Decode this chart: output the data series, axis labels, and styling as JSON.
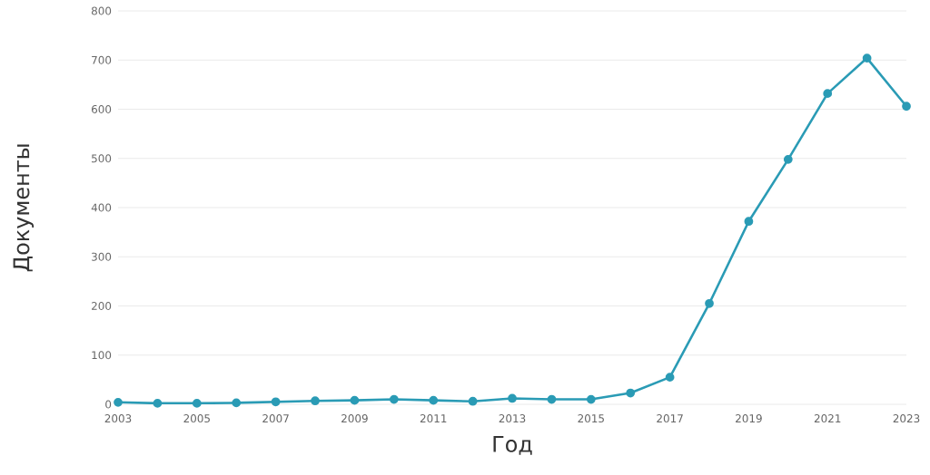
{
  "chart_data": {
    "type": "line",
    "xlabel": "Год",
    "ylabel": "Документы",
    "x": [
      2003,
      2004,
      2005,
      2006,
      2007,
      2008,
      2009,
      2010,
      2011,
      2012,
      2013,
      2014,
      2015,
      2016,
      2017,
      2018,
      2019,
      2020,
      2021,
      2022,
      2023
    ],
    "series": [
      {
        "color": "#2a9bb5",
        "values": [
          4,
          2,
          2,
          3,
          5,
          7,
          8,
          10,
          8,
          6,
          12,
          10,
          10,
          23,
          55,
          205,
          372,
          498,
          632,
          704,
          606
        ]
      }
    ],
    "xlim": [
      2003,
      2023
    ],
    "xticks": [
      2003,
      2005,
      2007,
      2009,
      2011,
      2013,
      2015,
      2017,
      2019,
      2021,
      2023
    ],
    "ylim": [
      0,
      800
    ],
    "yticks": [
      0,
      100,
      200,
      300,
      400,
      500,
      600,
      700,
      800
    ],
    "grid": "y",
    "marker": "circle",
    "line_style": "solid"
  }
}
